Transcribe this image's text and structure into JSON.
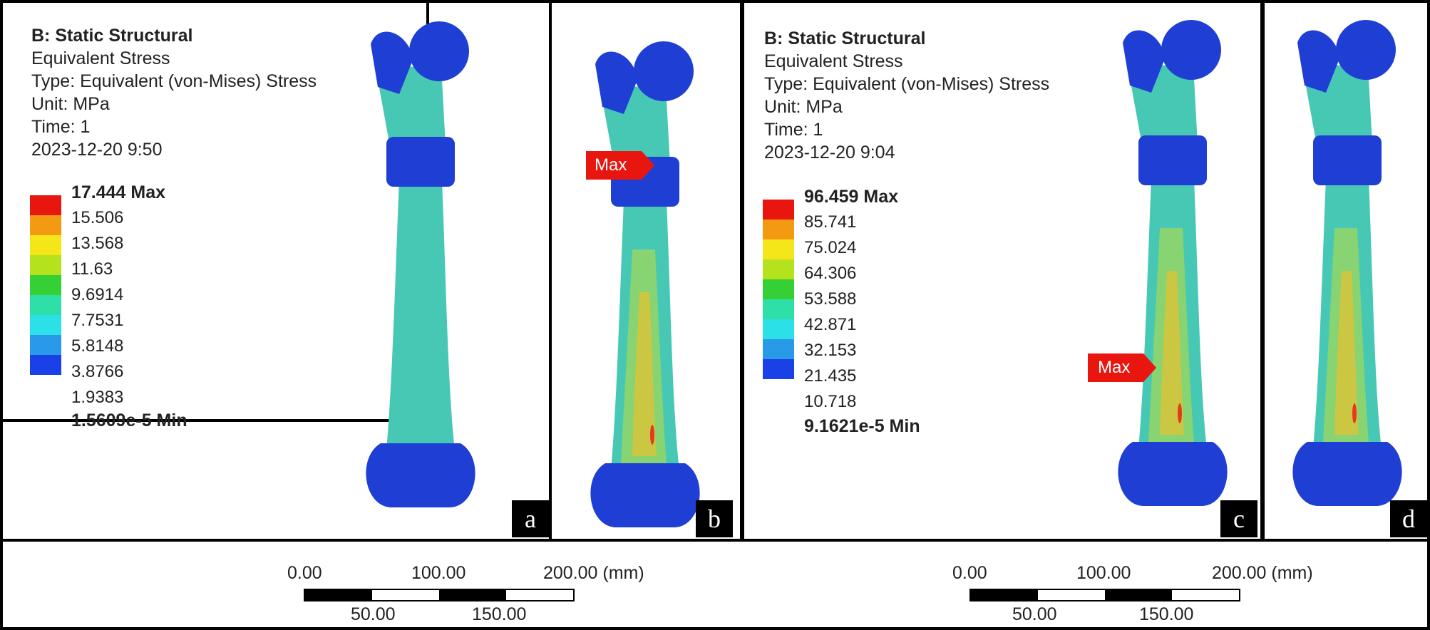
{
  "panels": {
    "a": {
      "letter": "a"
    },
    "b": {
      "letter": "b",
      "max_tag": "Max"
    },
    "c": {
      "letter": "c",
      "max_tag": "Max"
    },
    "d": {
      "letter": "d"
    }
  },
  "left_header": {
    "title": "B: Static Structural",
    "result": "Equivalent Stress",
    "type": "Type: Equivalent (von-Mises) Stress",
    "unit": "Unit: MPa",
    "time": "Time: 1",
    "timestamp": "2023-12-20 9:50"
  },
  "right_header": {
    "title": "B: Static Structural",
    "result": "Equivalent Stress",
    "type": "Type: Equivalent (von-Mises) Stress",
    "unit": "Unit: MPa",
    "time": "Time: 1",
    "timestamp": "2023-12-20 9:04"
  },
  "left_legend": {
    "max_label": "17.444 Max",
    "levels": [
      "15.506",
      "13.568",
      "11.63",
      "9.6914",
      "7.7531",
      "5.8148",
      "3.8766",
      "1.9383"
    ],
    "min_label": "1.5609e-5 Min"
  },
  "right_legend": {
    "max_label": "96.459 Max",
    "levels": [
      "85.741",
      "75.024",
      "64.306",
      "53.588",
      "42.871",
      "32.153",
      "21.435",
      "10.718"
    ],
    "min_label": "9.1621e-5 Min"
  },
  "legend_colors": [
    "#e8160f",
    "#f39a12",
    "#f5e61a",
    "#b4e21c",
    "#34d035",
    "#2ee0a8",
    "#2ce0e8",
    "#289ae8",
    "#1a40e8"
  ],
  "bone_colors": {
    "base": "#1f3fd4",
    "shaft_low": "#46c8b4",
    "shaft_mid": "#8fd46a",
    "hot": "#d8c43a",
    "peak": "#e23a1c"
  },
  "scale_left": {
    "t0": "0.00",
    "t100": "100.00",
    "t200": "200.00 (mm)",
    "t50": "50.00",
    "t150": "150.00"
  },
  "scale_right": {
    "t0": "0.00",
    "t100": "100.00",
    "t200": "200.00 (mm)",
    "t50": "50.00",
    "t150": "150.00"
  }
}
